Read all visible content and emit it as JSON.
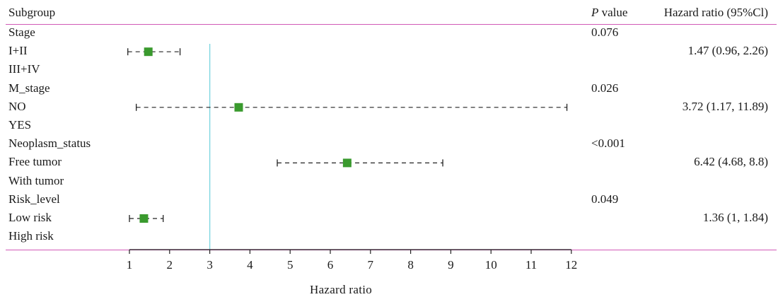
{
  "header": {
    "subgroup": "Subgroup",
    "p_italic": "P",
    "p_rest": " value",
    "hr": "Hazard ratio (95%Cl)"
  },
  "colors": {
    "rule": "#d15ab7",
    "marker": "#3a9a2e",
    "reference_line": "#7fd6e0",
    "ci": "#222222"
  },
  "chart_data": {
    "type": "forest",
    "xlabel": "Hazard  ratio",
    "xlim": [
      1,
      12
    ],
    "x_ticks": [
      1,
      2,
      3,
      4,
      5,
      6,
      7,
      8,
      9,
      10,
      11,
      12
    ],
    "reference_line": 3,
    "rows": [
      {
        "label": "Stage",
        "p": "0.076"
      },
      {
        "label": "I+II",
        "hr": 1.47,
        "lo": 0.96,
        "hi": 2.26,
        "text": "1.47 (0.96, 2.26)"
      },
      {
        "label": "III+IV"
      },
      {
        "label": "M_stage",
        "p": "0.026"
      },
      {
        "label": "NO",
        "hr": 3.72,
        "lo": 1.17,
        "hi": 11.89,
        "text": "3.72 (1.17, 11.89)"
      },
      {
        "label": "YES"
      },
      {
        "label": "Neoplasm_status",
        "p": "<0.001"
      },
      {
        "label": "Free tumor",
        "hr": 6.42,
        "lo": 4.68,
        "hi": 8.8,
        "text": "6.42 (4.68, 8.8)"
      },
      {
        "label": "With tumor"
      },
      {
        "label": "Risk_level",
        "p": "0.049"
      },
      {
        "label": "Low risk",
        "hr": 1.36,
        "lo": 1,
        "hi": 1.84,
        "text": "1.36 (1, 1.84)"
      },
      {
        "label": "High risk"
      }
    ]
  }
}
